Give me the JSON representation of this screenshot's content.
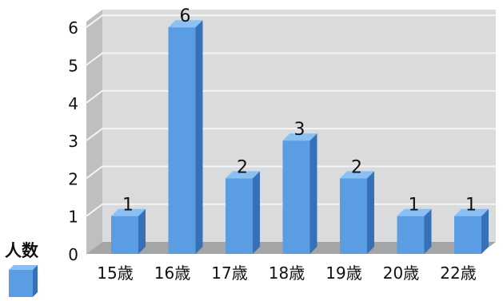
{
  "chart_data": {
    "type": "bar",
    "categories": [
      "15歳",
      "16歳",
      "17歳",
      "18歳",
      "19歳",
      "20歳",
      "22歳"
    ],
    "series": [
      {
        "name": "人数",
        "values": [
          1,
          6,
          2,
          3,
          2,
          1,
          1
        ]
      }
    ],
    "ylim": [
      0,
      6
    ],
    "yticks": [
      0,
      1,
      2,
      3,
      4,
      5,
      6
    ],
    "grid": true,
    "legend_position": "bottom-left",
    "colors": {
      "bar_front": "#5a9de3",
      "bar_side": "#3670b8",
      "bar_top": "#8cc0f0",
      "plot_back": "#d9dbdc",
      "plot_floor": "#a3a5a6",
      "plot_wall": "#bdbfc0",
      "gridline": "#f4f4f4"
    }
  }
}
